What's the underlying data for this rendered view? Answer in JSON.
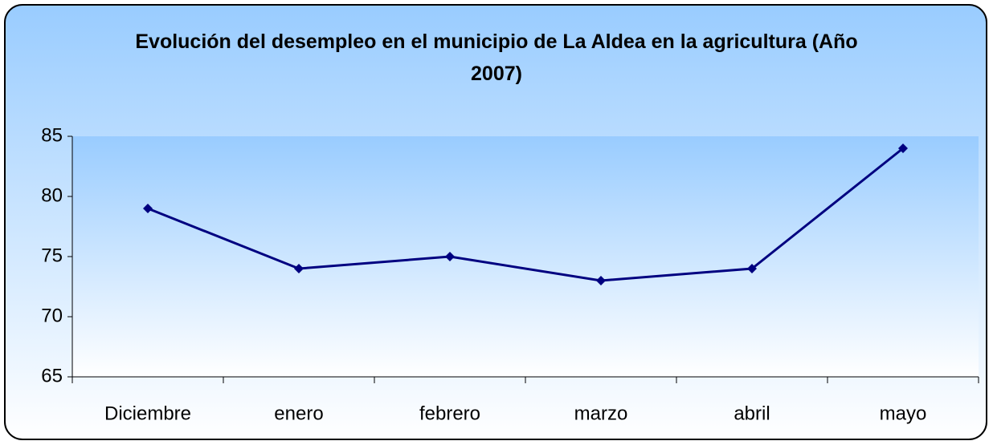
{
  "chart_data": {
    "type": "line",
    "title": "Evolución del desempleo en el municipio de La Aldea en la agricultura (Año 2007)",
    "categories": [
      "Diciembre",
      "enero",
      "febrero",
      "marzo",
      "abril",
      "mayo"
    ],
    "values": [
      79,
      74,
      75,
      73,
      74,
      84
    ],
    "color": "#000080",
    "ylim": [
      65,
      85
    ],
    "yticks": [
      65,
      70,
      75,
      80,
      85
    ],
    "grid": false
  }
}
